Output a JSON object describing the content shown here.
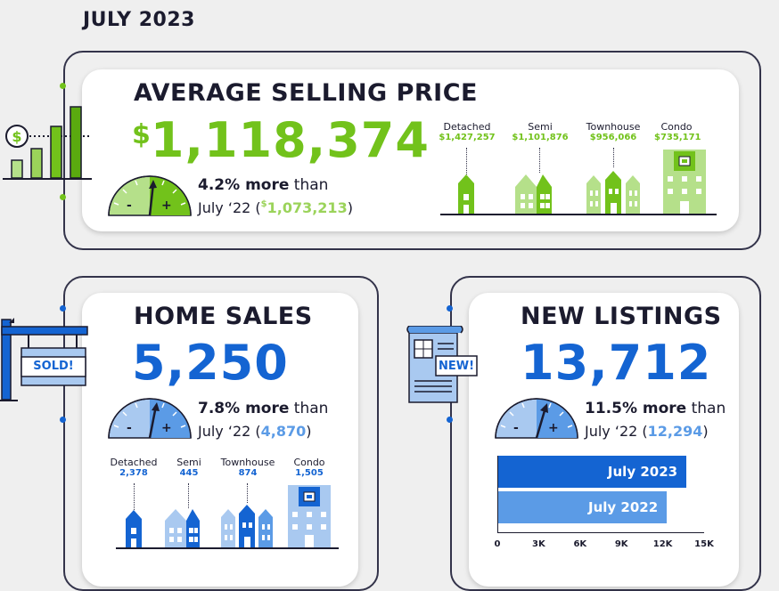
{
  "page": {
    "title": "JULY 2023"
  },
  "colors": {
    "green": "#72c21b",
    "light_green": "#b5e08a",
    "blue": "#1464d2",
    "light_blue": "#a9c9f0",
    "dark": "#1b1b2e"
  },
  "asp": {
    "title": "AVERAGE SELLING PRICE",
    "currency": "$",
    "value": "1,118,374",
    "pct": "4.2% more",
    "than": " than",
    "prev_prefix": "July ‘22 (",
    "prev_currency": "$",
    "prev_value": "1,073,213",
    "prev_suffix": ")",
    "gauge_minus": "-",
    "gauge_plus": "+",
    "icon": "price-growth-bar-icon",
    "types": [
      {
        "label": "Detached",
        "value": "$1,427,257"
      },
      {
        "label": "Semi",
        "value": "$1,101,876"
      },
      {
        "label": "Townhouse",
        "value": "$956,066"
      },
      {
        "label": "Condo",
        "value": "$735,171"
      }
    ]
  },
  "sales": {
    "title": "HOME SALES",
    "value": "5,250",
    "pct": "7.8% more",
    "than": " than",
    "prev_prefix": "July ‘22 (",
    "prev_value": "4,870",
    "prev_suffix": ")",
    "gauge_minus": "-",
    "gauge_plus": "+",
    "sign_text": "SOLD!",
    "icon": "sold-sign-icon",
    "types": [
      {
        "label": "Detached",
        "value": "2,378"
      },
      {
        "label": "Semi",
        "value": "445"
      },
      {
        "label": "Townhouse",
        "value": "874"
      },
      {
        "label": "Condo",
        "value": "1,505"
      }
    ]
  },
  "listings": {
    "title": "NEW LISTINGS",
    "value": "13,712",
    "pct": "11.5% more",
    "than": " than",
    "prev_prefix": "July ‘22 (",
    "prev_value": "12,294",
    "prev_suffix": ")",
    "gauge_minus": "-",
    "gauge_plus": "+",
    "badge": "NEW!",
    "icon": "new-listing-document-icon"
  },
  "chart_data": {
    "type": "bar",
    "orientation": "horizontal",
    "categories": [
      "July 2023",
      "July 2022"
    ],
    "values": [
      13712,
      12294
    ],
    "xlim": [
      0,
      15000
    ],
    "xticks": [
      "0",
      "3K",
      "6K",
      "9K",
      "12K",
      "15K"
    ],
    "colors": [
      "#1464d2",
      "#5b9be6"
    ]
  }
}
